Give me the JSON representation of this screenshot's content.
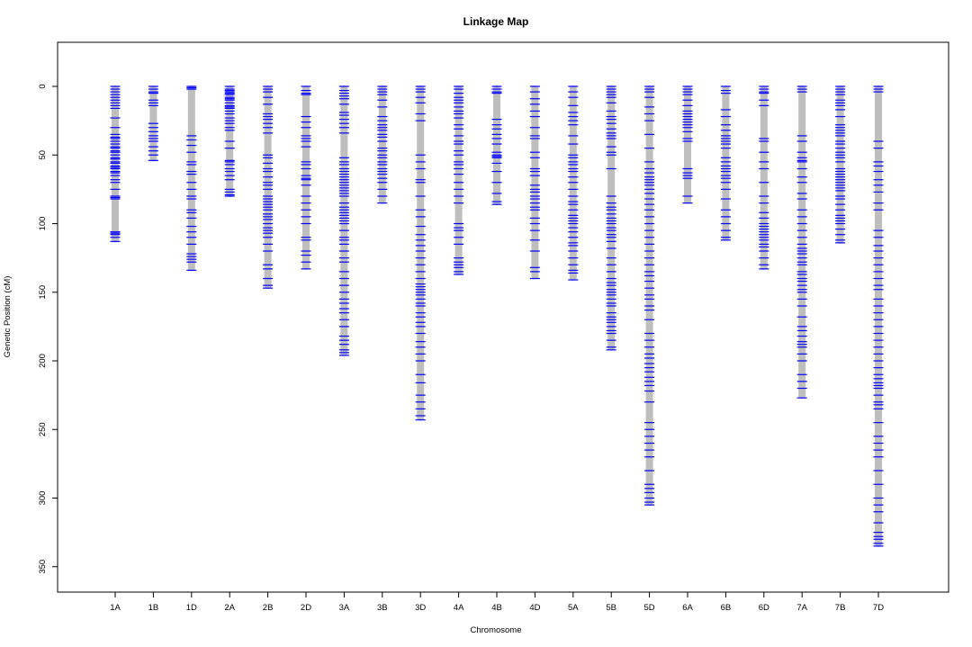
{
  "colors": {
    "chromosome": "#bebebe",
    "marker": "#0000ff",
    "frame": "#000000",
    "background": "#ffffff"
  },
  "chart_data": {
    "type": "linkage-map",
    "title": "Linkage Map",
    "xlabel": "Chromosome",
    "ylabel": "Genetic Position (cM)",
    "ylim": [
      0,
      365
    ],
    "y_reversed": true,
    "yticks": [
      "0",
      "50",
      "100",
      "150",
      "200",
      "250",
      "300",
      "350"
    ],
    "ytick_values": [
      0,
      50,
      100,
      150,
      200,
      250,
      300,
      350
    ],
    "grid": false,
    "legend": "none",
    "chromosomes": [
      {
        "name": "1A",
        "length": 113,
        "markers": [
          0,
          2,
          4,
          6,
          8,
          10,
          12,
          14,
          16,
          23,
          30,
          35,
          37,
          38,
          40,
          42,
          44,
          45,
          47,
          48,
          50,
          52,
          53,
          55,
          56,
          58,
          59,
          60,
          62,
          63,
          65,
          68,
          70,
          75,
          80,
          81,
          82,
          106,
          107,
          108,
          110,
          113
        ]
      },
      {
        "name": "1B",
        "length": 54,
        "markers": [
          0,
          2,
          4,
          5,
          10,
          12,
          14,
          27,
          30,
          33,
          36,
          38,
          40,
          44,
          47,
          50,
          54
        ]
      },
      {
        "name": "1D",
        "length": 134,
        "markers": [
          0,
          1,
          2,
          36,
          39,
          43,
          48,
          55,
          57,
          62,
          64,
          70,
          75,
          80,
          82,
          90,
          92,
          96,
          102,
          106,
          110,
          115,
          122,
          124,
          126,
          128,
          134
        ]
      },
      {
        "name": "2A",
        "length": 80,
        "markers": [
          0,
          2,
          3,
          4,
          5,
          6,
          8,
          9,
          10,
          12,
          14,
          15,
          16,
          18,
          20,
          23,
          25,
          27,
          30,
          32,
          40,
          45,
          54,
          55,
          57,
          60,
          62,
          65,
          68,
          75,
          77,
          79,
          80
        ]
      },
      {
        "name": "2B",
        "length": 147,
        "markers": [
          0,
          2,
          4,
          8,
          13,
          20,
          22,
          24,
          27,
          30,
          34,
          50,
          52,
          56,
          60,
          62,
          66,
          70,
          72,
          75,
          80,
          82,
          84,
          86,
          88,
          90,
          93,
          95,
          97,
          100,
          103,
          105,
          107,
          110,
          115,
          120,
          130,
          133,
          140,
          145,
          147
        ]
      },
      {
        "name": "2D",
        "length": 133,
        "markers": [
          0,
          3,
          5,
          6,
          22,
          26,
          30,
          36,
          38,
          40,
          44,
          55,
          57,
          60,
          65,
          67,
          68,
          72,
          80,
          85,
          90,
          95,
          100,
          110,
          112,
          120,
          123,
          128,
          133
        ]
      },
      {
        "name": "3A",
        "length": 196,
        "markers": [
          0,
          3,
          5,
          7,
          9,
          13,
          19,
          21,
          24,
          27,
          30,
          34,
          52,
          55,
          57,
          60,
          62,
          64,
          66,
          68,
          70,
          72,
          74,
          76,
          78,
          80,
          85,
          88,
          90,
          92,
          94,
          96,
          98,
          100,
          105,
          110,
          112,
          115,
          120,
          125,
          128,
          135,
          140,
          145,
          150,
          155,
          158,
          162,
          165,
          170,
          175,
          182,
          185,
          188,
          192,
          194,
          196
        ]
      },
      {
        "name": "3B",
        "length": 85,
        "markers": [
          0,
          2,
          4,
          6,
          10,
          15,
          22,
          25,
          28,
          30,
          32,
          35,
          37,
          40,
          45,
          47,
          50,
          52,
          55,
          57,
          60,
          62,
          64,
          67,
          70,
          75,
          80,
          85
        ]
      },
      {
        "name": "3D",
        "length": 243,
        "markers": [
          0,
          2,
          4,
          8,
          12,
          20,
          25,
          50,
          55,
          60,
          68,
          70,
          80,
          90,
          95,
          102,
          108,
          112,
          116,
          120,
          125,
          130,
          135,
          140,
          144,
          146,
          148,
          150,
          152,
          155,
          158,
          160,
          165,
          168,
          172,
          175,
          180,
          186,
          190,
          195,
          200,
          210,
          216,
          225,
          230,
          235,
          240,
          243
        ]
      },
      {
        "name": "4A",
        "length": 137,
        "markers": [
          0,
          2,
          5,
          8,
          10,
          12,
          15,
          18,
          20,
          23,
          28,
          31,
          36,
          40,
          42,
          47,
          50,
          55,
          57,
          60,
          64,
          70,
          75,
          80,
          85,
          100,
          103,
          105,
          110,
          115,
          125,
          128,
          130,
          132,
          135,
          137
        ]
      },
      {
        "name": "4B",
        "length": 86,
        "markers": [
          0,
          2,
          4,
          5,
          24,
          28,
          31,
          35,
          38,
          42,
          48,
          50,
          51,
          52,
          56,
          62,
          70,
          78,
          84,
          86
        ]
      },
      {
        "name": "4D",
        "length": 140,
        "markers": [
          0,
          4,
          9,
          13,
          18,
          22,
          30,
          36,
          38,
          48,
          52,
          60,
          62,
          65,
          72,
          75,
          77,
          80,
          82,
          85,
          88,
          90,
          96,
          100,
          105,
          112,
          120,
          132,
          135,
          140
        ]
      },
      {
        "name": "5A",
        "length": 141,
        "markers": [
          0,
          4,
          8,
          14,
          19,
          22,
          25,
          28,
          36,
          42,
          50,
          52,
          55,
          57,
          60,
          62,
          66,
          70,
          75,
          80,
          84,
          86,
          90,
          94,
          96,
          98,
          100,
          103,
          106,
          110,
          114,
          116,
          120,
          125,
          130,
          134,
          136,
          141
        ]
      },
      {
        "name": "5B",
        "length": 192,
        "markers": [
          0,
          2,
          4,
          6,
          8,
          12,
          18,
          22,
          24,
          27,
          31,
          34,
          36,
          38,
          44,
          48,
          50,
          60,
          80,
          85,
          88,
          90,
          93,
          96,
          98,
          100,
          103,
          105,
          108,
          110,
          113,
          118,
          125,
          130,
          135,
          140,
          143,
          145,
          148,
          150,
          152,
          155,
          158,
          160,
          165,
          168,
          170,
          172,
          175,
          178,
          180,
          185,
          190,
          192
        ]
      },
      {
        "name": "5D",
        "length": 305,
        "markers": [
          0,
          2,
          4,
          8,
          15,
          20,
          25,
          35,
          45,
          55,
          60,
          63,
          66,
          68,
          70,
          72,
          75,
          78,
          82,
          86,
          90,
          95,
          100,
          105,
          110,
          115,
          120,
          125,
          130,
          135,
          138,
          142,
          147,
          152,
          155,
          160,
          163,
          170,
          180,
          185,
          190,
          195,
          198,
          202,
          205,
          208,
          212,
          215,
          218,
          222,
          230,
          245,
          250,
          255,
          260,
          265,
          270,
          280,
          290,
          293,
          296,
          300,
          303,
          305
        ]
      },
      {
        "name": "6A",
        "length": 85,
        "markers": [
          0,
          2,
          4,
          6,
          10,
          14,
          18,
          20,
          22,
          24,
          26,
          28,
          30,
          33,
          38,
          40,
          60,
          63,
          65,
          67,
          80,
          85
        ]
      },
      {
        "name": "6B",
        "length": 112,
        "markers": [
          0,
          3,
          5,
          17,
          22,
          28,
          32,
          36,
          38,
          40,
          42,
          45,
          52,
          55,
          58,
          60,
          62,
          65,
          67,
          70,
          75,
          82,
          90,
          95,
          100,
          105,
          110,
          112
        ]
      },
      {
        "name": "6D",
        "length": 133,
        "markers": [
          0,
          2,
          4,
          5,
          10,
          14,
          38,
          40,
          48,
          55,
          60,
          70,
          80,
          85,
          92,
          96,
          100,
          102,
          104,
          106,
          108,
          110,
          112,
          115,
          117,
          120,
          125,
          130,
          133
        ]
      },
      {
        "name": "7A",
        "length": 227,
        "markers": [
          0,
          2,
          4,
          36,
          40,
          48,
          52,
          54,
          55,
          60,
          66,
          70,
          78,
          82,
          90,
          95,
          100,
          105,
          110,
          115,
          118,
          120,
          122,
          125,
          128,
          130,
          135,
          137,
          140,
          142,
          145,
          148,
          150,
          155,
          160,
          168,
          175,
          178,
          182,
          186,
          188,
          190,
          195,
          200,
          210,
          215,
          220,
          227
        ]
      },
      {
        "name": "7B",
        "length": 114,
        "markers": [
          0,
          2,
          4,
          6,
          10,
          12,
          14,
          17,
          22,
          28,
          30,
          32,
          34,
          36,
          40,
          42,
          45,
          48,
          50,
          52,
          55,
          60,
          62,
          64,
          66,
          68,
          70,
          72,
          74,
          76,
          80,
          82,
          86,
          90,
          94,
          96,
          98,
          100,
          104,
          108,
          112,
          114
        ]
      },
      {
        "name": "7D",
        "length": 335,
        "markers": [
          0,
          2,
          4,
          40,
          45,
          55,
          58,
          62,
          68,
          72,
          77,
          85,
          90,
          105,
          110,
          116,
          120,
          125,
          130,
          135,
          140,
          145,
          148,
          155,
          160,
          165,
          170,
          175,
          180,
          185,
          190,
          195,
          200,
          205,
          210,
          213,
          216,
          218,
          220,
          225,
          230,
          232,
          235,
          245,
          255,
          260,
          265,
          270,
          280,
          290,
          300,
          305,
          310,
          318,
          325,
          328,
          330,
          333,
          335
        ]
      }
    ]
  }
}
